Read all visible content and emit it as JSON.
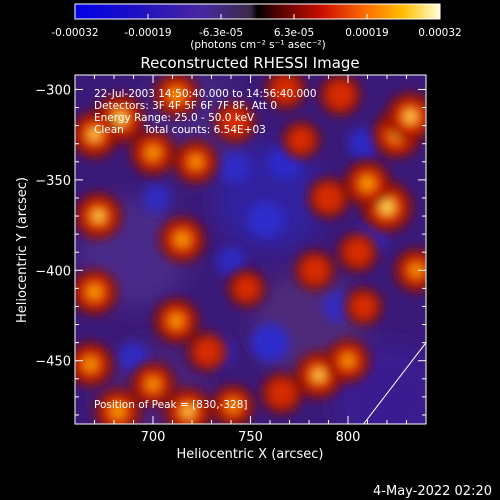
{
  "chart_data": {
    "type": "heatmap",
    "title": "Reconstructed RHESSI Image",
    "xlabel": "Heliocentric X (arcsec)",
    "ylabel": "Heliocentric Y (arcsec)",
    "xlim": [
      660,
      840
    ],
    "ylim": [
      -485,
      -292
    ],
    "x_ticks": [
      700,
      750,
      800
    ],
    "y_ticks": [
      -300,
      -350,
      -400,
      -450
    ],
    "colorbar": {
      "ticks": [
        "-0.00032",
        "-0.00019",
        "-6.3e-05",
        "6.3e-05",
        "0.00019",
        "0.00032"
      ],
      "unit_label": "(photons cm⁻² s⁻¹ asec⁻²)",
      "range": [
        -0.00032,
        0.00032
      ]
    },
    "annotations": [
      "22-Jul-2003 14:50:40.000 to 14:56:40.000",
      "Detectors: 3F 4F 5F 6F 7F 8F, Att 0",
      "Energy Range: 25.0 - 50.0 keV",
      "Clean      Total counts: 6.54E+03"
    ],
    "peak_label": "Position of Peak = [830,-328]",
    "hot_spots": [
      {
        "x": 683,
        "y": -316,
        "level": 0.95
      },
      {
        "x": 670,
        "y": -325,
        "level": 0.85
      },
      {
        "x": 700,
        "y": -335,
        "level": 0.75
      },
      {
        "x": 712,
        "y": -303,
        "level": 0.75
      },
      {
        "x": 722,
        "y": -340,
        "level": 0.7
      },
      {
        "x": 742,
        "y": -318,
        "level": 0.6
      },
      {
        "x": 672,
        "y": -370,
        "level": 0.85
      },
      {
        "x": 670,
        "y": -412,
        "level": 0.8
      },
      {
        "x": 668,
        "y": -452,
        "level": 0.75
      },
      {
        "x": 682,
        "y": -478,
        "level": 0.8
      },
      {
        "x": 700,
        "y": -463,
        "level": 0.7
      },
      {
        "x": 715,
        "y": -383,
        "level": 0.8
      },
      {
        "x": 712,
        "y": -428,
        "level": 0.75
      },
      {
        "x": 728,
        "y": -445,
        "level": 0.55
      },
      {
        "x": 718,
        "y": -478,
        "level": 0.85
      },
      {
        "x": 741,
        "y": -475,
        "level": 0.65
      },
      {
        "x": 748,
        "y": -410,
        "level": 0.45
      },
      {
        "x": 766,
        "y": -468,
        "level": 0.6
      },
      {
        "x": 785,
        "y": -458,
        "level": 0.85
      },
      {
        "x": 800,
        "y": -450,
        "level": 0.7
      },
      {
        "x": 783,
        "y": -400,
        "level": 0.55
      },
      {
        "x": 808,
        "y": -420,
        "level": 0.45
      },
      {
        "x": 825,
        "y": -325,
        "level": 0.85
      },
      {
        "x": 832,
        "y": -315,
        "level": 0.9
      },
      {
        "x": 820,
        "y": -365,
        "level": 1.0
      },
      {
        "x": 810,
        "y": -352,
        "level": 0.8
      },
      {
        "x": 790,
        "y": -360,
        "level": 0.6
      },
      {
        "x": 835,
        "y": -400,
        "level": 0.7
      },
      {
        "x": 805,
        "y": -390,
        "level": 0.55
      },
      {
        "x": 768,
        "y": -300,
        "level": 0.55
      },
      {
        "x": 796,
        "y": -303,
        "level": 0.6
      },
      {
        "x": 776,
        "y": -328,
        "level": 0.45
      }
    ],
    "cold_spots": [
      {
        "x": 768,
        "y": -340,
        "level": 0.7
      },
      {
        "x": 758,
        "y": -372,
        "level": 0.8
      },
      {
        "x": 760,
        "y": -440,
        "level": 0.9
      },
      {
        "x": 733,
        "y": -445,
        "level": 0.7
      },
      {
        "x": 808,
        "y": -330,
        "level": 0.6
      },
      {
        "x": 742,
        "y": -343,
        "level": 0.55
      },
      {
        "x": 690,
        "y": -448,
        "level": 0.55
      },
      {
        "x": 740,
        "y": -395,
        "level": 0.5
      },
      {
        "x": 795,
        "y": -420,
        "level": 0.55
      },
      {
        "x": 812,
        "y": -382,
        "level": 0.6
      },
      {
        "x": 702,
        "y": -360,
        "level": 0.45
      }
    ],
    "limb_line": [
      [
        808,
        -485
      ],
      [
        840,
        -440
      ]
    ]
  },
  "footer_date": "4-May-2022 02:20"
}
